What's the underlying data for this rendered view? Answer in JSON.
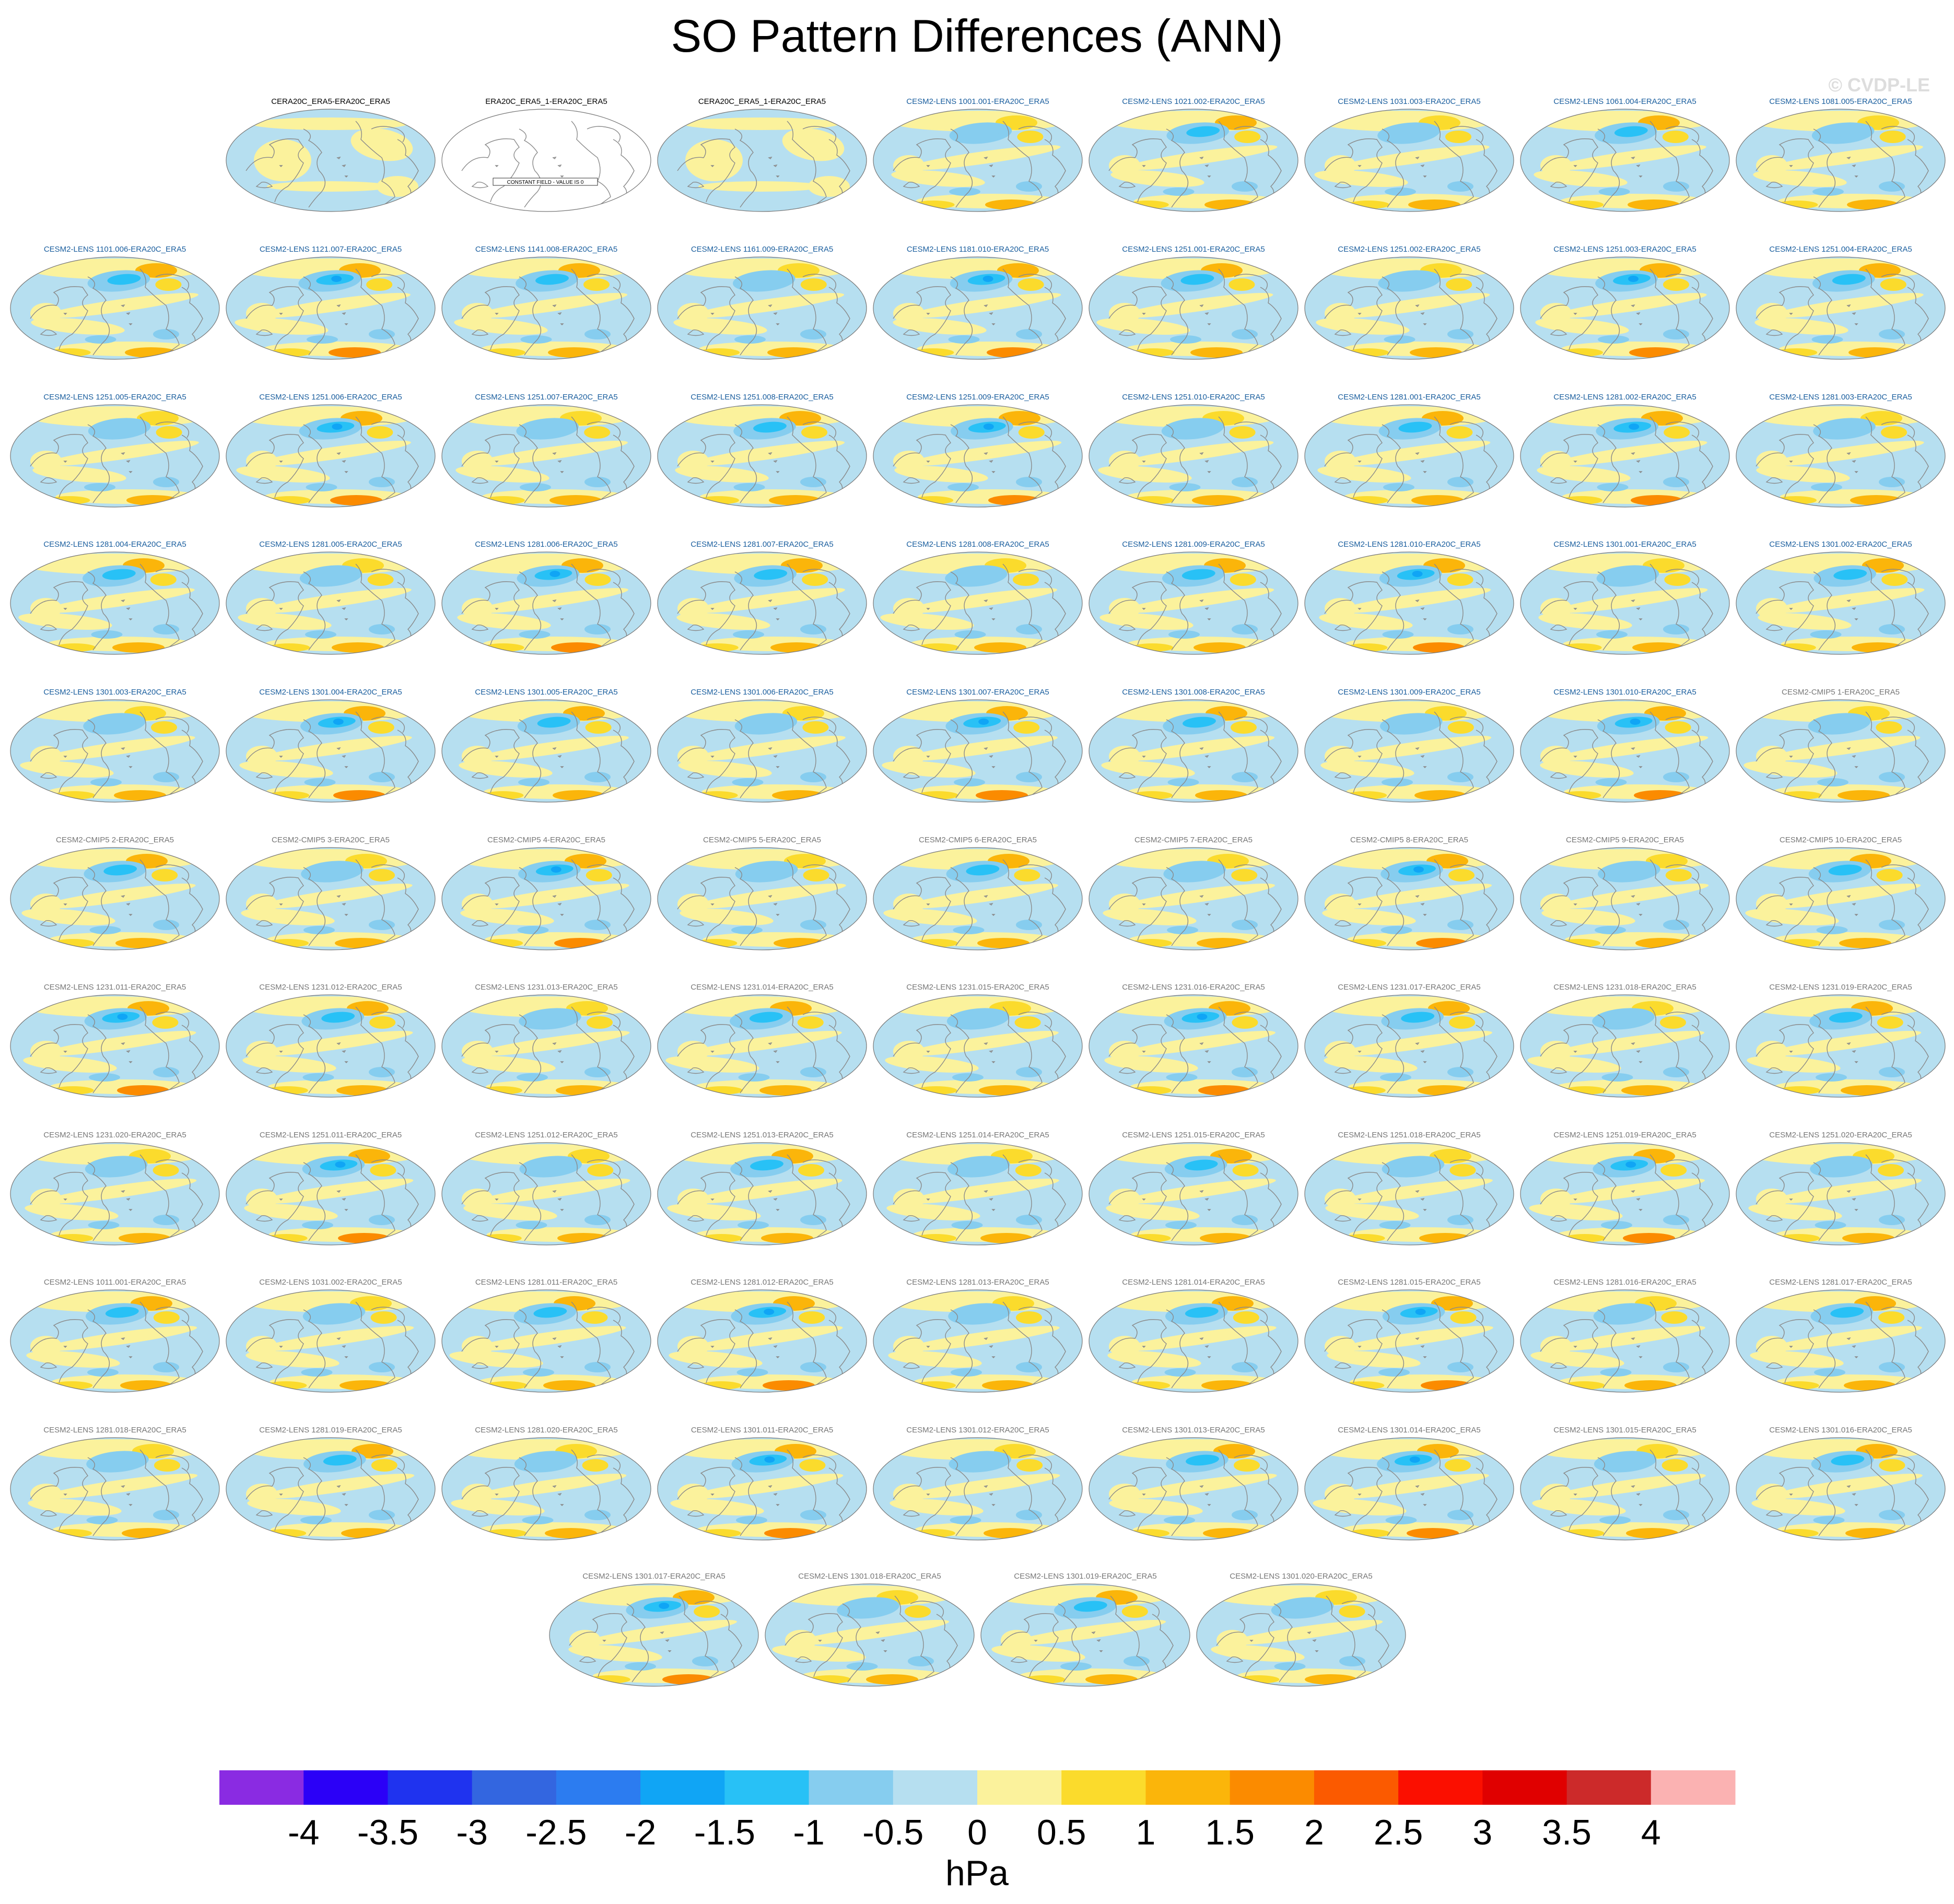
{
  "title": "SO Pattern Differences (ANN)",
  "watermark": "© CVDP-LE",
  "chart_data": {
    "type": "heatmap",
    "description_units": "hPa",
    "colorbar": {
      "unit": "hPa",
      "ticks": [
        "-4",
        "-3.5",
        "-3",
        "-2.5",
        "-2",
        "-1.5",
        "-1",
        "-0.5",
        "0",
        "0.5",
        "1",
        "1.5",
        "2",
        "2.5",
        "3",
        "3.5",
        "4"
      ],
      "colors": [
        "#8a2be2",
        "#2b00f7",
        "#1f33ef",
        "#3366e0",
        "#2c7cf0",
        "#10a5f5",
        "#28c1f6",
        "#86cdef",
        "#b6dff0",
        "#fbf29c",
        "#fbdb2c",
        "#fbb50a",
        "#fb8b00",
        "#fb5a00",
        "#fb0f00",
        "#e00000",
        "#cc2a2a",
        "#fbb2b2"
      ]
    },
    "panels": [
      {
        "label": "CERA20C_ERA5-ERA20C_ERA5",
        "group": "obs",
        "pattern": 1
      },
      {
        "label": "ERA20C_ERA5_1-ERA20C_ERA5",
        "group": "obs",
        "pattern": 0,
        "note": "CONSTANT FIELD - VALUE IS 0"
      },
      {
        "label": "CERA20C_ERA5_1-ERA20C_ERA5",
        "group": "obs",
        "pattern": 1
      },
      {
        "label": "CESM2-LENS 1001.001-ERA20C_ERA5",
        "group": "lens",
        "pattern": 2
      },
      {
        "label": "CESM2-LENS 1021.002-ERA20C_ERA5",
        "group": "lens",
        "pattern": 3
      },
      {
        "label": "CESM2-LENS 1031.003-ERA20C_ERA5",
        "group": "lens",
        "pattern": 2
      },
      {
        "label": "CESM2-LENS 1061.004-ERA20C_ERA5",
        "group": "lens",
        "pattern": 3
      },
      {
        "label": "CESM2-LENS 1081.005-ERA20C_ERA5",
        "group": "lens",
        "pattern": 2
      },
      {
        "label": "CESM2-LENS 1101.006-ERA20C_ERA5",
        "group": "lens",
        "pattern": 3
      },
      {
        "label": "CESM2-LENS 1121.007-ERA20C_ERA5",
        "group": "lens",
        "pattern": 4
      },
      {
        "label": "CESM2-LENS 1141.008-ERA20C_ERA5",
        "group": "lens",
        "pattern": 3
      },
      {
        "label": "CESM2-LENS 1161.009-ERA20C_ERA5",
        "group": "lens",
        "pattern": 2
      },
      {
        "label": "CESM2-LENS 1181.010-ERA20C_ERA5",
        "group": "lens",
        "pattern": 4
      },
      {
        "label": "CESM2-LENS 1251.001-ERA20C_ERA5",
        "group": "lens",
        "pattern": 3
      },
      {
        "label": "CESM2-LENS 1251.002-ERA20C_ERA5",
        "group": "lens",
        "pattern": 2
      },
      {
        "label": "CESM2-LENS 1251.003-ERA20C_ERA5",
        "group": "lens",
        "pattern": 4
      },
      {
        "label": "CESM2-LENS 1251.004-ERA20C_ERA5",
        "group": "lens",
        "pattern": 3
      },
      {
        "label": "CESM2-LENS 1251.005-ERA20C_ERA5",
        "group": "lens",
        "pattern": 2
      },
      {
        "label": "CESM2-LENS 1251.006-ERA20C_ERA5",
        "group": "lens",
        "pattern": 4
      },
      {
        "label": "CESM2-LENS 1251.007-ERA20C_ERA5",
        "group": "lens",
        "pattern": 2
      },
      {
        "label": "CESM2-LENS 1251.008-ERA20C_ERA5",
        "group": "lens",
        "pattern": 3
      },
      {
        "label": "CESM2-LENS 1251.009-ERA20C_ERA5",
        "group": "lens",
        "pattern": 4
      },
      {
        "label": "CESM2-LENS 1251.010-ERA20C_ERA5",
        "group": "lens",
        "pattern": 2
      },
      {
        "label": "CESM2-LENS 1281.001-ERA20C_ERA5",
        "group": "lens",
        "pattern": 3
      },
      {
        "label": "CESM2-LENS 1281.002-ERA20C_ERA5",
        "group": "lens",
        "pattern": 4
      },
      {
        "label": "CESM2-LENS 1281.003-ERA20C_ERA5",
        "group": "lens",
        "pattern": 2
      },
      {
        "label": "CESM2-LENS 1281.004-ERA20C_ERA5",
        "group": "lens",
        "pattern": 3
      },
      {
        "label": "CESM2-LENS 1281.005-ERA20C_ERA5",
        "group": "lens",
        "pattern": 2
      },
      {
        "label": "CESM2-LENS 1281.006-ERA20C_ERA5",
        "group": "lens",
        "pattern": 4
      },
      {
        "label": "CESM2-LENS 1281.007-ERA20C_ERA5",
        "group": "lens",
        "pattern": 3
      },
      {
        "label": "CESM2-LENS 1281.008-ERA20C_ERA5",
        "group": "lens",
        "pattern": 2
      },
      {
        "label": "CESM2-LENS 1281.009-ERA20C_ERA5",
        "group": "lens",
        "pattern": 3
      },
      {
        "label": "CESM2-LENS 1281.010-ERA20C_ERA5",
        "group": "lens",
        "pattern": 4
      },
      {
        "label": "CESM2-LENS 1301.001-ERA20C_ERA5",
        "group": "lens",
        "pattern": 2
      },
      {
        "label": "CESM2-LENS 1301.002-ERA20C_ERA5",
        "group": "lens",
        "pattern": 3
      },
      {
        "label": "CESM2-LENS 1301.003-ERA20C_ERA5",
        "group": "lens",
        "pattern": 2
      },
      {
        "label": "CESM2-LENS 1301.004-ERA20C_ERA5",
        "group": "lens",
        "pattern": 4
      },
      {
        "label": "CESM2-LENS 1301.005-ERA20C_ERA5",
        "group": "lens",
        "pattern": 3
      },
      {
        "label": "CESM2-LENS 1301.006-ERA20C_ERA5",
        "group": "lens",
        "pattern": 2
      },
      {
        "label": "CESM2-LENS 1301.007-ERA20C_ERA5",
        "group": "lens",
        "pattern": 4
      },
      {
        "label": "CESM2-LENS 1301.008-ERA20C_ERA5",
        "group": "lens",
        "pattern": 3
      },
      {
        "label": "CESM2-LENS 1301.009-ERA20C_ERA5",
        "group": "lens",
        "pattern": 2
      },
      {
        "label": "CESM2-LENS 1301.010-ERA20C_ERA5",
        "group": "lens",
        "pattern": 4
      },
      {
        "label": "CESM2-CMIP5 1-ERA20C_ERA5",
        "group": "cmip5",
        "pattern": 2
      },
      {
        "label": "CESM2-CMIP5 2-ERA20C_ERA5",
        "group": "cmip5",
        "pattern": 3
      },
      {
        "label": "CESM2-CMIP5 3-ERA20C_ERA5",
        "group": "cmip5",
        "pattern": 2
      },
      {
        "label": "CESM2-CMIP5 4-ERA20C_ERA5",
        "group": "cmip5",
        "pattern": 4
      },
      {
        "label": "CESM2-CMIP5 5-ERA20C_ERA5",
        "group": "cmip5",
        "pattern": 2
      },
      {
        "label": "CESM2-CMIP5 6-ERA20C_ERA5",
        "group": "cmip5",
        "pattern": 3
      },
      {
        "label": "CESM2-CMIP5 7-ERA20C_ERA5",
        "group": "cmip5",
        "pattern": 2
      },
      {
        "label": "CESM2-CMIP5 8-ERA20C_ERA5",
        "group": "cmip5",
        "pattern": 4
      },
      {
        "label": "CESM2-CMIP5 9-ERA20C_ERA5",
        "group": "cmip5",
        "pattern": 2
      },
      {
        "label": "CESM2-CMIP5 10-ERA20C_ERA5",
        "group": "cmip5",
        "pattern": 3
      },
      {
        "label": "CESM2-LENS 1231.011-ERA20C_ERA5",
        "group": "smbb",
        "pattern": 4
      },
      {
        "label": "CESM2-LENS 1231.012-ERA20C_ERA5",
        "group": "smbb",
        "pattern": 3
      },
      {
        "label": "CESM2-LENS 1231.013-ERA20C_ERA5",
        "group": "smbb",
        "pattern": 2
      },
      {
        "label": "CESM2-LENS 1231.014-ERA20C_ERA5",
        "group": "smbb",
        "pattern": 3
      },
      {
        "label": "CESM2-LENS 1231.015-ERA20C_ERA5",
        "group": "smbb",
        "pattern": 2
      },
      {
        "label": "CESM2-LENS 1231.016-ERA20C_ERA5",
        "group": "smbb",
        "pattern": 4
      },
      {
        "label": "CESM2-LENS 1231.017-ERA20C_ERA5",
        "group": "smbb",
        "pattern": 3
      },
      {
        "label": "CESM2-LENS 1231.018-ERA20C_ERA5",
        "group": "smbb",
        "pattern": 2
      },
      {
        "label": "CESM2-LENS 1231.019-ERA20C_ERA5",
        "group": "smbb",
        "pattern": 3
      },
      {
        "label": "CESM2-LENS 1231.020-ERA20C_ERA5",
        "group": "smbb",
        "pattern": 2
      },
      {
        "label": "CESM2-LENS 1251.011-ERA20C_ERA5",
        "group": "smbb",
        "pattern": 4
      },
      {
        "label": "CESM2-LENS 1251.012-ERA20C_ERA5",
        "group": "smbb",
        "pattern": 2
      },
      {
        "label": "CESM2-LENS 1251.013-ERA20C_ERA5",
        "group": "smbb",
        "pattern": 3
      },
      {
        "label": "CESM2-LENS 1251.014-ERA20C_ERA5",
        "group": "smbb",
        "pattern": 2
      },
      {
        "label": "CESM2-LENS 1251.015-ERA20C_ERA5",
        "group": "smbb",
        "pattern": 3
      },
      {
        "label": "CESM2-LENS 1251.018-ERA20C_ERA5",
        "group": "smbb",
        "pattern": 2
      },
      {
        "label": "CESM2-LENS 1251.019-ERA20C_ERA5",
        "group": "smbb",
        "pattern": 4
      },
      {
        "label": "CESM2-LENS 1251.020-ERA20C_ERA5",
        "group": "smbb",
        "pattern": 2
      },
      {
        "label": "CESM2-LENS 1011.001-ERA20C_ERA5",
        "group": "smbb",
        "pattern": 3
      },
      {
        "label": "CESM2-LENS 1031.002-ERA20C_ERA5",
        "group": "smbb",
        "pattern": 2
      },
      {
        "label": "CESM2-LENS 1281.011-ERA20C_ERA5",
        "group": "smbb",
        "pattern": 3
      },
      {
        "label": "CESM2-LENS 1281.012-ERA20C_ERA5",
        "group": "smbb",
        "pattern": 4
      },
      {
        "label": "CESM2-LENS 1281.013-ERA20C_ERA5",
        "group": "smbb",
        "pattern": 2
      },
      {
        "label": "CESM2-LENS 1281.014-ERA20C_ERA5",
        "group": "smbb",
        "pattern": 3
      },
      {
        "label": "CESM2-LENS 1281.015-ERA20C_ERA5",
        "group": "smbb",
        "pattern": 4
      },
      {
        "label": "CESM2-LENS 1281.016-ERA20C_ERA5",
        "group": "smbb",
        "pattern": 2
      },
      {
        "label": "CESM2-LENS 1281.017-ERA20C_ERA5",
        "group": "smbb",
        "pattern": 3
      },
      {
        "label": "CESM2-LENS 1281.018-ERA20C_ERA5",
        "group": "smbb",
        "pattern": 2
      },
      {
        "label": "CESM2-LENS 1281.019-ERA20C_ERA5",
        "group": "smbb",
        "pattern": 3
      },
      {
        "label": "CESM2-LENS 1281.020-ERA20C_ERA5",
        "group": "smbb",
        "pattern": 2
      },
      {
        "label": "CESM2-LENS 1301.011-ERA20C_ERA5",
        "group": "smbb",
        "pattern": 4
      },
      {
        "label": "CESM2-LENS 1301.012-ERA20C_ERA5",
        "group": "smbb",
        "pattern": 2
      },
      {
        "label": "CESM2-LENS 1301.013-ERA20C_ERA5",
        "group": "smbb",
        "pattern": 3
      },
      {
        "label": "CESM2-LENS 1301.014-ERA20C_ERA5",
        "group": "smbb",
        "pattern": 4
      },
      {
        "label": "CESM2-LENS 1301.015-ERA20C_ERA5",
        "group": "smbb",
        "pattern": 2
      },
      {
        "label": "CESM2-LENS 1301.016-ERA20C_ERA5",
        "group": "smbb",
        "pattern": 3
      },
      {
        "label": "CESM2-LENS 1301.017-ERA20C_ERA5",
        "group": "smbb",
        "pattern": 4
      },
      {
        "label": "CESM2-LENS 1301.018-ERA20C_ERA5",
        "group": "smbb",
        "pattern": 2
      },
      {
        "label": "CESM2-LENS 1301.019-ERA20C_ERA5",
        "group": "smbb",
        "pattern": 3
      },
      {
        "label": "CESM2-LENS 1301.020-ERA20C_ERA5",
        "group": "smbb",
        "pattern": 2
      }
    ],
    "group_title_colors": {
      "obs": "#000000",
      "lens": "#1a5e9e",
      "cmip5": "#777777",
      "smbb": "#777777"
    }
  }
}
